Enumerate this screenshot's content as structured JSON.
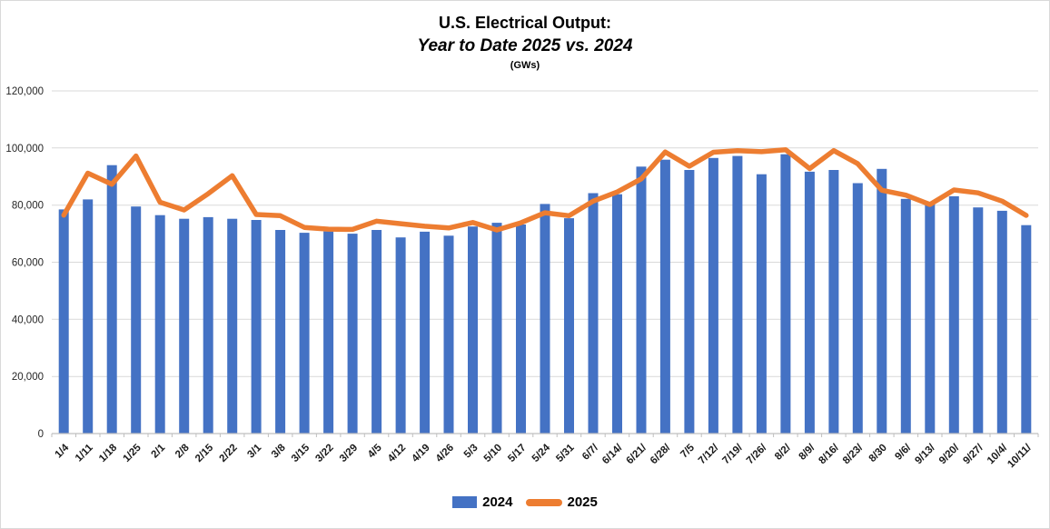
{
  "chart_data": {
    "type": "combo",
    "title": "U.S. Electrical Output:",
    "subtitle": "Year to Date 2025 vs. 2024",
    "units_label": "(GWs)",
    "grid": true,
    "legend_position": "bottom",
    "ylim": [
      0,
      120000
    ],
    "ytick_interval": 20000,
    "ytick_labels": [
      "0",
      "20,000",
      "40,000",
      "60,000",
      "80,000",
      "100,000",
      "120,000"
    ],
    "categories": [
      "1/4",
      "1/11",
      "1/18",
      "1/25",
      "2/1",
      "2/8",
      "2/15",
      "2/22",
      "3/1",
      "3/8",
      "3/15",
      "3/22",
      "3/29",
      "4/5",
      "4/12",
      "4/19",
      "4/26",
      "5/3",
      "5/10",
      "5/17",
      "5/24",
      "5/31",
      "6/7/",
      "6/14/",
      "6/21/",
      "6/28/",
      "7/5",
      "7/12/",
      "7/19/",
      "7/26/",
      "8/2/",
      "8/9/",
      "8/16/",
      "8/23/",
      "8/30",
      "9/6/",
      "9/13/",
      "9/20/",
      "9/27/",
      "10/4/",
      "10/11/"
    ],
    "series": [
      {
        "name": "2024",
        "type": "bar",
        "color": "#4472C4",
        "values": [
          78500,
          82000,
          94000,
          79500,
          76500,
          75200,
          75800,
          75200,
          74800,
          71300,
          70300,
          70800,
          70000,
          71300,
          68700,
          70700,
          69300,
          72500,
          73800,
          73200,
          80400,
          75400,
          84200,
          83800,
          93500,
          95900,
          92300,
          96500,
          97200,
          90800,
          97800,
          91700,
          92300,
          87700,
          92700,
          82200,
          80200,
          83100,
          79200,
          78000,
          73000
        ]
      },
      {
        "name": "2025",
        "type": "line",
        "color": "#ED7D31",
        "values": [
          76500,
          91200,
          87300,
          97200,
          81000,
          78300,
          84000,
          90300,
          76700,
          76300,
          72200,
          71600,
          71500,
          74400,
          73500,
          72600,
          72000,
          73900,
          71300,
          73800,
          77300,
          76300,
          81400,
          84600,
          89200,
          98600,
          93600,
          98500,
          99100,
          98700,
          99400,
          92800,
          99100,
          94500,
          85200,
          83500,
          80200,
          85300,
          84300,
          81400,
          76400
        ]
      }
    ],
    "colors": {
      "gridline": "#d9d9d9",
      "axis": "#bfbfbf",
      "y_label_text": "#262626",
      "x_label_text": "#1a1a1a",
      "title_text": "#000000",
      "background": "#ffffff"
    }
  }
}
